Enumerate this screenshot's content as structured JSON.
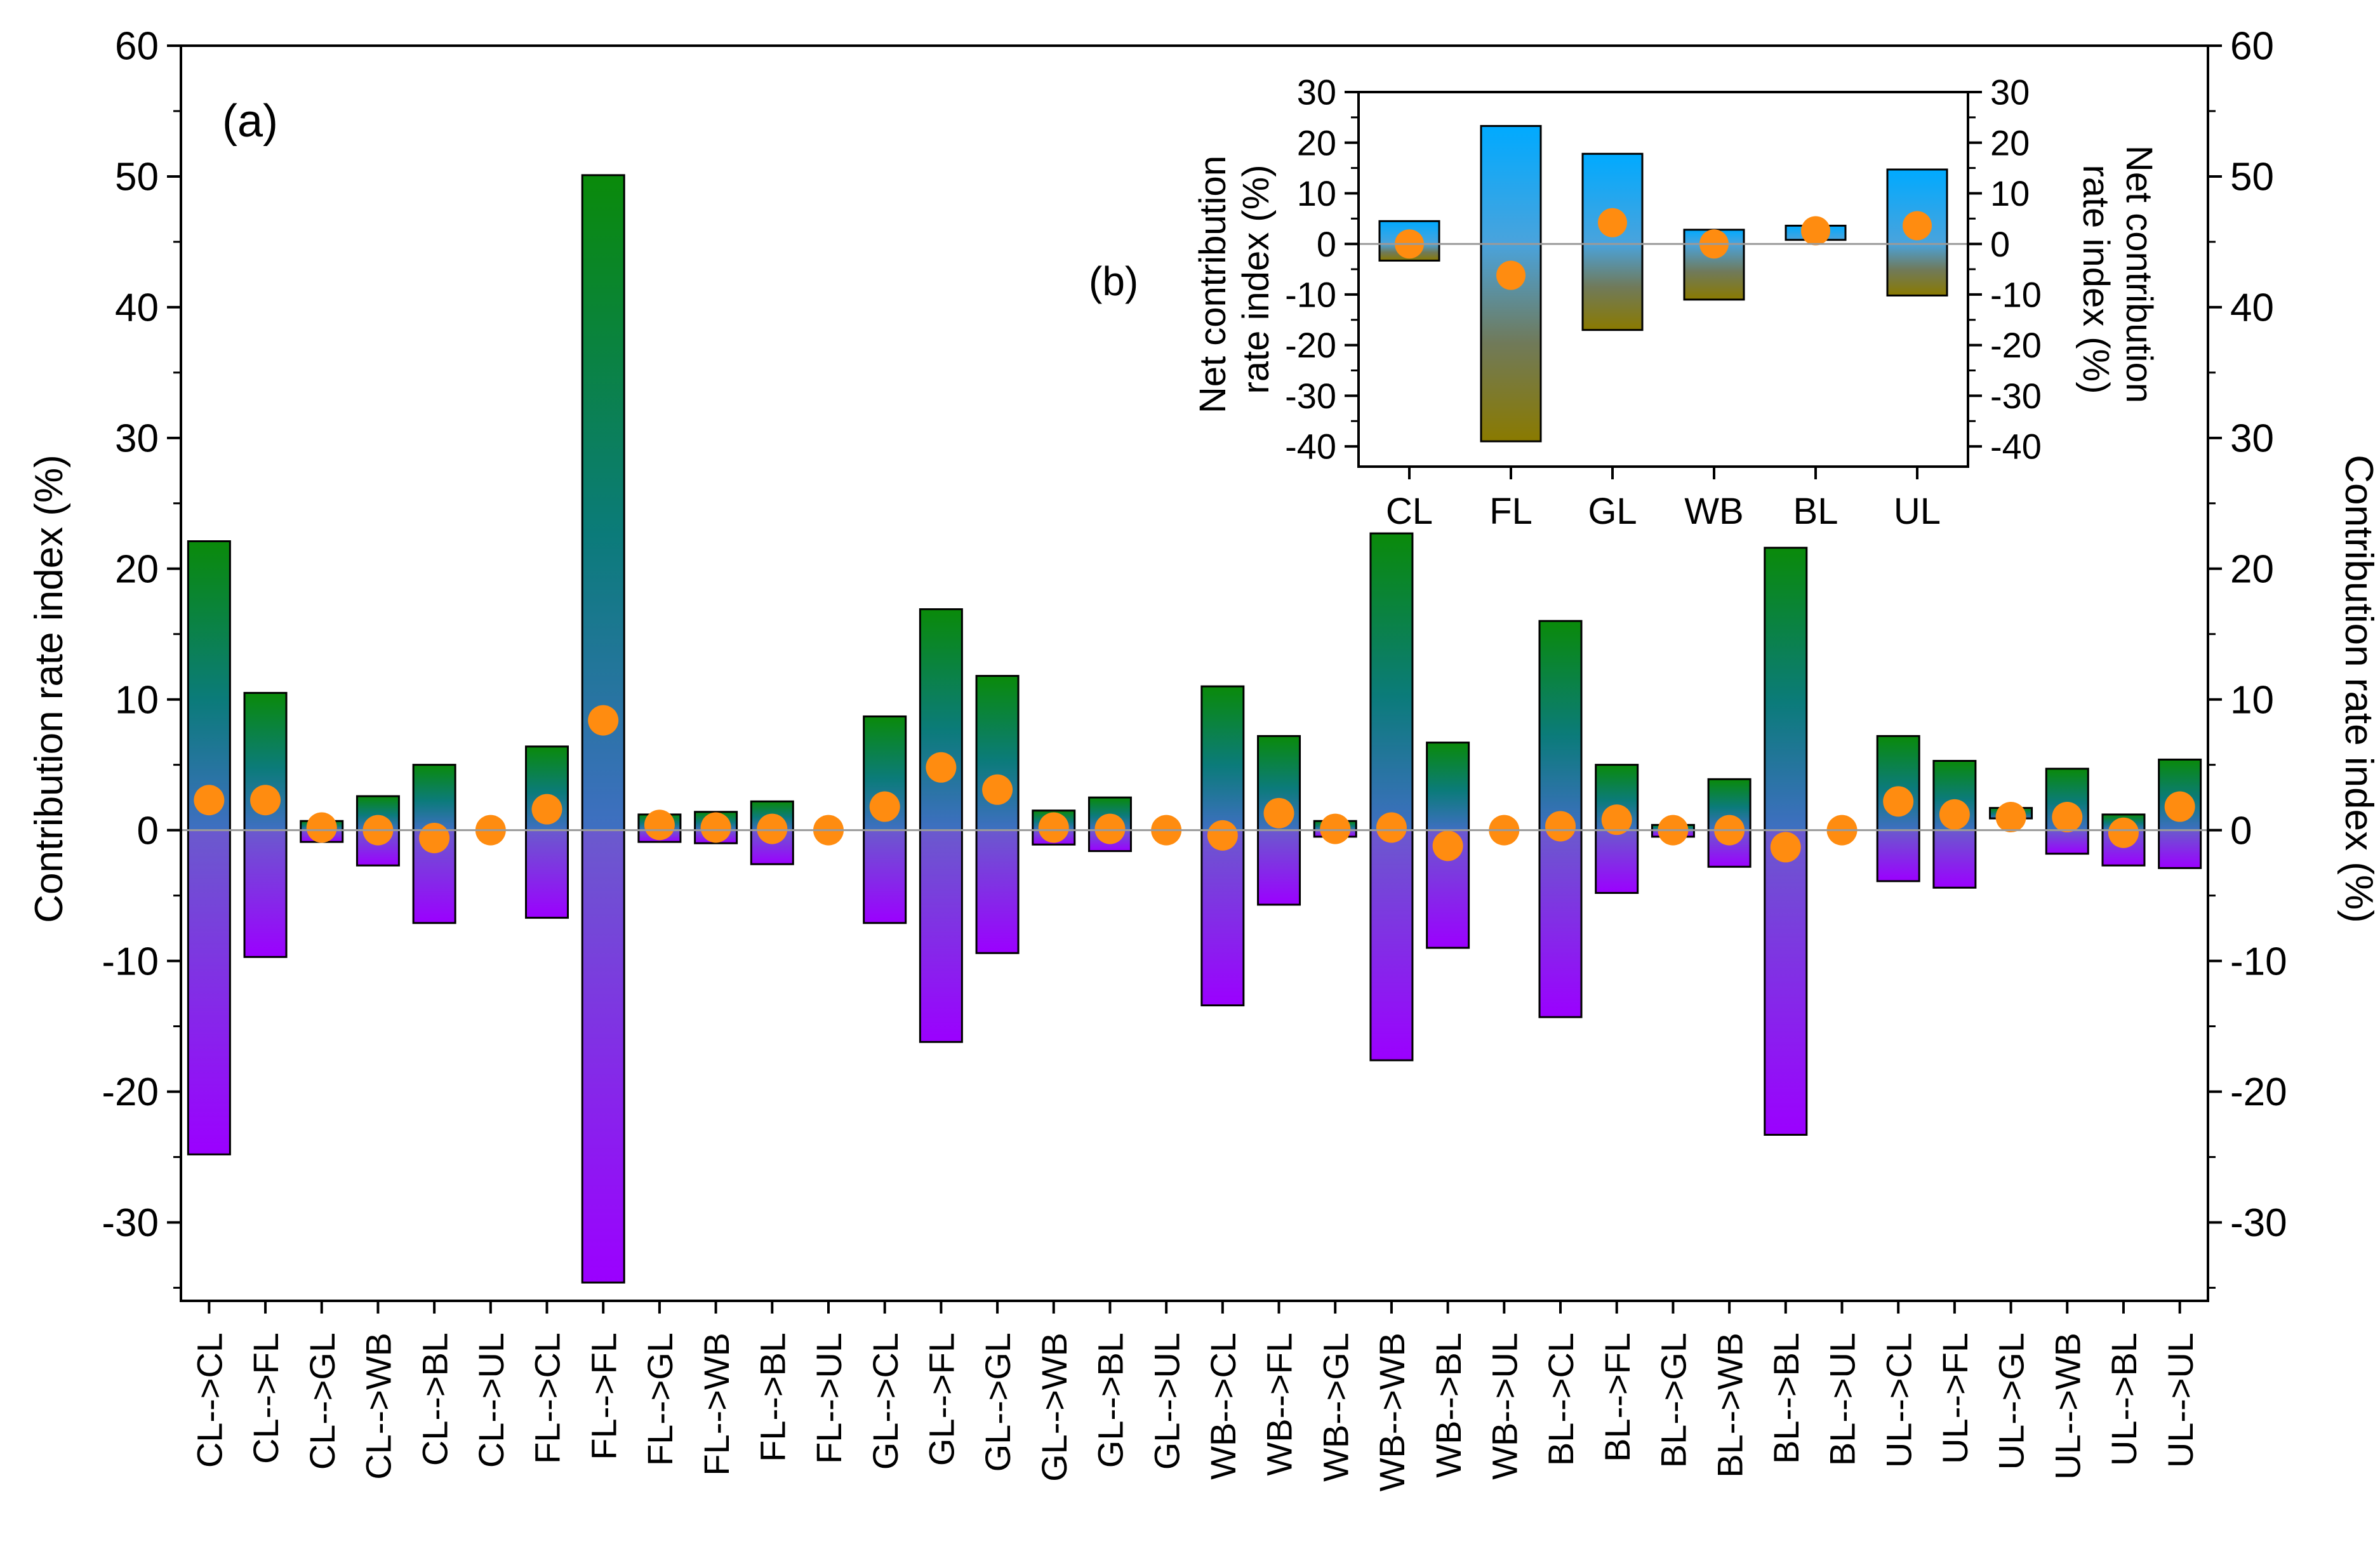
{
  "chart_data": [
    {
      "panel_label": "(a)",
      "type": "bar",
      "subtype": "floating-positive-negative-with-net-points",
      "ylabel": "Contribution rate index (%)",
      "ylabel_right": "Contribution rate index (%)",
      "ylim": [
        -36,
        60
      ],
      "yticks": [
        -30,
        -20,
        -10,
        0,
        10,
        20,
        30,
        40,
        50,
        60
      ],
      "categories": [
        "CL-->CL",
        "CL-->FL",
        "CL-->GL",
        "CL-->WB",
        "CL-->BL",
        "CL-->UL",
        "FL-->CL",
        "FL-->FL",
        "FL-->GL",
        "FL-->WB",
        "FL-->BL",
        "FL-->UL",
        "GL-->CL",
        "GL-->FL",
        "GL-->GL",
        "GL-->WB",
        "GL-->BL",
        "GL-->UL",
        "WB-->CL",
        "WB-->FL",
        "WB-->GL",
        "WB-->WB",
        "WB-->BL",
        "WB-->UL",
        "BL-->CL",
        "BL-->FL",
        "BL-->GL",
        "BL-->WB",
        "BL-->BL",
        "BL-->UL",
        "UL-->CL",
        "UL-->FL",
        "UL-->GL",
        "UL-->WB",
        "UL-->BL",
        "UL-->UL"
      ],
      "series": [
        {
          "name": "positive",
          "values": [
            22.1,
            10.5,
            0.7,
            2.6,
            5.0,
            0,
            6.4,
            50.1,
            1.2,
            1.4,
            2.2,
            0,
            8.7,
            16.9,
            11.8,
            1.5,
            2.5,
            0,
            11.0,
            7.2,
            0.7,
            22.7,
            6.7,
            0,
            16.0,
            5.0,
            0.4,
            3.9,
            21.6,
            0,
            7.2,
            5.3,
            1.7,
            4.7,
            1.2,
            5.4
          ]
        },
        {
          "name": "negative",
          "values": [
            -24.8,
            -9.7,
            -0.9,
            -2.7,
            -7.1,
            0,
            -6.7,
            -34.6,
            -0.9,
            -1.0,
            -2.6,
            0,
            -7.1,
            -16.2,
            -9.4,
            -1.1,
            -1.6,
            0,
            -13.4,
            -5.7,
            -0.5,
            -17.6,
            -9.0,
            0,
            -14.3,
            -4.8,
            -0.5,
            -2.8,
            -23.3,
            0,
            -3.9,
            -4.4,
            0.9,
            -1.8,
            -2.7,
            -2.9
          ]
        },
        {
          "name": "net",
          "values": [
            2.3,
            2.3,
            0.2,
            0,
            -0.6,
            0,
            1.6,
            8.4,
            0.4,
            0.2,
            0.1,
            0,
            1.8,
            4.8,
            3.1,
            0.2,
            0.1,
            0,
            -0.4,
            1.3,
            0.1,
            0.2,
            -1.2,
            0,
            0.3,
            0.8,
            0,
            0,
            -1.3,
            0,
            2.2,
            1.2,
            1.0,
            1.0,
            -0.2,
            1.8
          ]
        }
      ]
    },
    {
      "panel_label": "(b)",
      "type": "bar",
      "subtype": "floating-positive-negative-with-net-points",
      "ylabel": "Net contribution rate index (%)",
      "ylabel_right": "Net contribution rate index (%)",
      "ylim": [
        -44,
        30
      ],
      "yticks": [
        -40,
        -30,
        -20,
        -10,
        0,
        10,
        20,
        30
      ],
      "categories": [
        "CL",
        "FL",
        "GL",
        "WB",
        "BL",
        "UL"
      ],
      "series": [
        {
          "name": "positive",
          "values": [
            4.5,
            23.3,
            17.8,
            2.8,
            3.6,
            14.7
          ]
        },
        {
          "name": "negative",
          "values": [
            -3.3,
            -39.0,
            -17.0,
            -11.0,
            0.8,
            -10.2
          ]
        },
        {
          "name": "net",
          "values": [
            0,
            -6.2,
            4.2,
            0,
            2.6,
            3.6
          ]
        }
      ]
    }
  ]
}
